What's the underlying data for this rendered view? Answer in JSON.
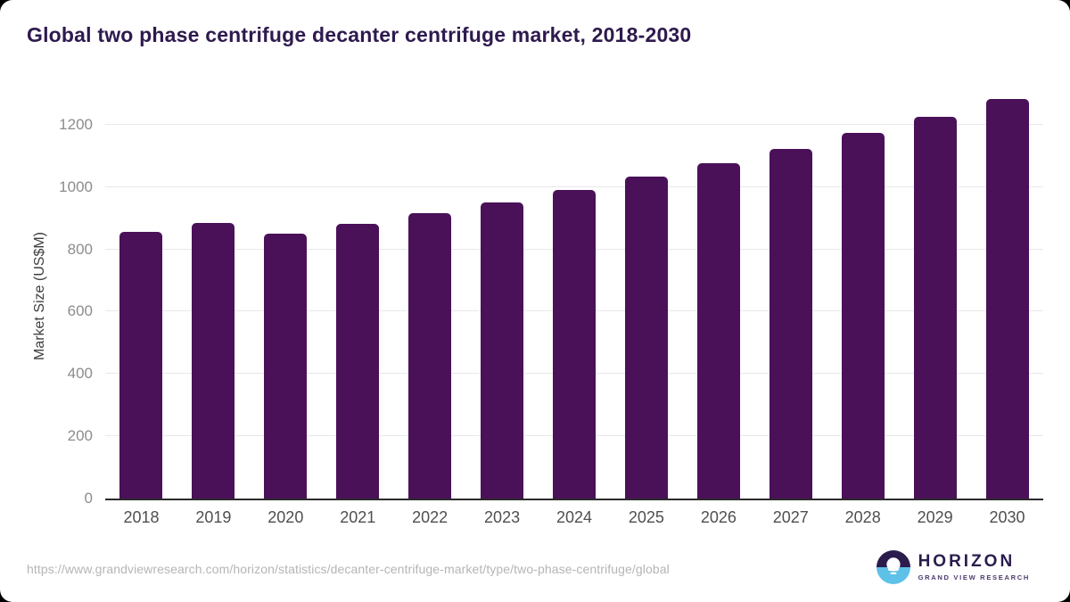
{
  "title": "Global two phase centrifuge decanter centrifuge market, 2018-2030",
  "chart_data": {
    "type": "bar",
    "categories": [
      "2018",
      "2019",
      "2020",
      "2021",
      "2022",
      "2023",
      "2024",
      "2025",
      "2026",
      "2027",
      "2028",
      "2029",
      "2030"
    ],
    "values": [
      855,
      886,
      850,
      881,
      915,
      951,
      992,
      1034,
      1078,
      1123,
      1173,
      1225,
      1283
    ],
    "title": "Global two phase centrifuge decanter centrifuge market, 2018-2030",
    "xlabel": "",
    "ylabel": "Market Size (US$M)",
    "ylim": [
      0,
      1300
    ],
    "yticks": [
      0,
      200,
      400,
      600,
      800,
      1000,
      1200
    ],
    "grid": true,
    "legend": "none",
    "bar_color": "#4a1158"
  },
  "colors": {
    "title": "#2e1a4e",
    "bar": "#4a1158",
    "gridline": "#e8e8ea",
    "axis_line": "#2b2b2b",
    "y_tick": "#8c8c8c",
    "x_tick": "#4f4f4f",
    "background": "#ffffff",
    "logo_purple": "#2b1c4d",
    "logo_blue": "#5ec1e8"
  },
  "footer": {
    "source_url": "https://www.grandviewresearch.com/horizon/statistics/decanter-centrifuge-market/type/two-phase-centrifuge/global",
    "logo": {
      "title": "HORIZON",
      "subtitle": "GRAND VIEW RESEARCH"
    }
  }
}
